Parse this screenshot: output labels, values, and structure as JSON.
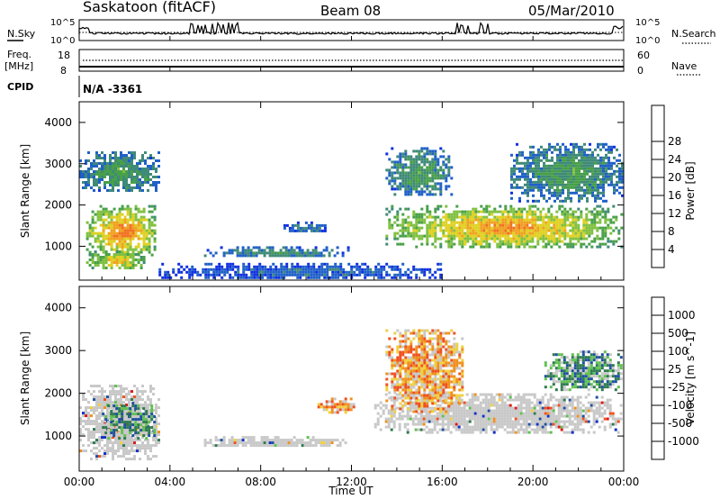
{
  "header": {
    "radar": "Saskatoon (fitACF)",
    "beam": "Beam 08",
    "date": "05/Mar/2010"
  },
  "noise_panel": {
    "left_label": "N.Sky",
    "right_label": "N.Search",
    "ticks_left": [
      "10^5",
      "10^0"
    ],
    "ticks_right": [
      "10^5",
      "10^0"
    ]
  },
  "freq_panel": {
    "left_label_line1": "Freq.",
    "left_label_line2": "[MHz]",
    "right_label": "Nave",
    "ticks_left": [
      "18",
      "8"
    ],
    "ticks_right": [
      "60",
      "0"
    ]
  },
  "cpid": {
    "label": "CPID",
    "value": "N/A -3361"
  },
  "xaxis": {
    "title": "Time UT",
    "ticks": [
      "00:00",
      "04:00",
      "08:00",
      "12:00",
      "16:00",
      "20:00",
      "00:00"
    ]
  },
  "chart_data": [
    {
      "type": "heatmap",
      "title": "",
      "xlabel": "Time UT",
      "ylabel": "Slant Range [km]",
      "xlim": [
        0,
        24
      ],
      "ylim": [
        180,
        4500
      ],
      "yticks": [
        1000,
        2000,
        3000,
        4000
      ],
      "colorbar": {
        "label": "Power [dB]",
        "range": [
          0,
          32
        ],
        "ticks": [
          4,
          8,
          12,
          16,
          20,
          24,
          28
        ],
        "tick_labels": [
          "4",
          "8",
          "12",
          "16",
          "20",
          "24",
          "28"
        ],
        "colors": [
          "#1030e0",
          "#2060c8",
          "#3f8a78",
          "#48a048",
          "#80c040",
          "#e0d020",
          "#f0a020",
          "#f07020",
          "#e82020"
        ]
      },
      "regions": [
        {
          "t": [
            0.3,
            3.4
          ],
          "r": [
            700,
            2000
          ],
          "value": 26
        },
        {
          "t": [
            0.3,
            3.0
          ],
          "r": [
            400,
            900
          ],
          "value": 22
        },
        {
          "t": [
            0.0,
            3.6
          ],
          "r": [
            2300,
            3300
          ],
          "value": 12
        },
        {
          "t": [
            5.5,
            12.0
          ],
          "r": [
            700,
            1000
          ],
          "value": 10
        },
        {
          "t": [
            9.0,
            11.0
          ],
          "r": [
            1300,
            1600
          ],
          "value": 8
        },
        {
          "t": [
            13.5,
            24.0
          ],
          "r": [
            900,
            2000
          ],
          "value": 24
        },
        {
          "t": [
            13.5,
            16.5
          ],
          "r": [
            2200,
            3400
          ],
          "value": 12
        },
        {
          "t": [
            19.0,
            24.0
          ],
          "r": [
            2000,
            3500
          ],
          "value": 12
        },
        {
          "t": [
            3.5,
            16.0
          ],
          "r": [
            200,
            600
          ],
          "value": 6
        }
      ]
    },
    {
      "type": "heatmap",
      "title": "",
      "xlabel": "Time UT",
      "ylabel": "Slant Range [km]",
      "xlim": [
        0,
        24
      ],
      "ylim": [
        180,
        4500
      ],
      "yticks": [
        1000,
        2000,
        3000,
        4000
      ],
      "colorbar": {
        "label": "Velocity [m s^-1]",
        "ticks": [
          "1000",
          "500",
          "100",
          "25",
          "-25",
          "-100",
          "-500",
          "-1000"
        ],
        "tick_labels": [
          "1000",
          "500",
          "100",
          "25",
          "-25",
          "-100",
          "-500",
          "-1000"
        ],
        "colors": [
          "#1030c8",
          "#2050a0",
          "#2e7a50",
          "#60c050",
          "#c8c8c8",
          "#f0d040",
          "#f09020",
          "#f05020",
          "#e01818"
        ]
      },
      "regions": [
        {
          "t": [
            0.0,
            3.6
          ],
          "r": [
            400,
            2200
          ],
          "value": "ground-scatter"
        },
        {
          "t": [
            1.0,
            3.4
          ],
          "r": [
            900,
            1800
          ],
          "value": "100"
        },
        {
          "t": [
            5.5,
            12.0
          ],
          "r": [
            700,
            1000
          ],
          "value": "ground-scatter"
        },
        {
          "t": [
            10.5,
            12.2
          ],
          "r": [
            1500,
            1900
          ],
          "value": "-500"
        },
        {
          "t": [
            13.0,
            24.0
          ],
          "r": [
            1000,
            2000
          ],
          "value": "ground-scatter"
        },
        {
          "t": [
            13.5,
            17.0
          ],
          "r": [
            1500,
            3500
          ],
          "value": "-500"
        },
        {
          "t": [
            20.5,
            24.0
          ],
          "r": [
            2000,
            3000
          ],
          "value": "100"
        }
      ]
    }
  ]
}
